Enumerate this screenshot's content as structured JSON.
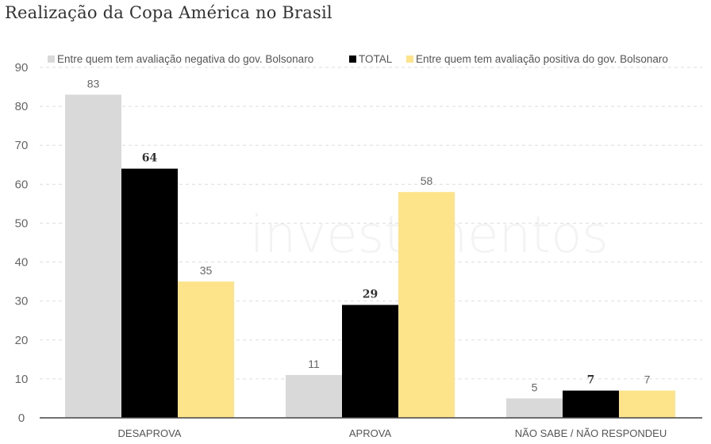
{
  "chart_data": {
    "type": "bar",
    "title": "Realização da Copa América no Brasil",
    "categories": [
      "DESAPROVA",
      "APROVA",
      "NÃO SABE / NÃO RESPONDEU"
    ],
    "series": [
      {
        "name": "Entre quem tem avaliação negativa do gov. Bolsonaro",
        "color": "#d9d9d9",
        "values": [
          83,
          11,
          5
        ]
      },
      {
        "name": "TOTAL",
        "color": "#000000",
        "values": [
          64,
          29,
          7
        ]
      },
      {
        "name": "Entre quem tem avaliação positiva do gov. Bolsonaro",
        "color": "#fde48a",
        "values": [
          35,
          58,
          7
        ]
      }
    ],
    "ylim": [
      0,
      90
    ],
    "yticks": [
      0,
      10,
      20,
      30,
      40,
      50,
      60,
      70,
      80,
      90
    ],
    "grid": true,
    "legend": "top",
    "xlabel": "",
    "ylabel": ""
  },
  "watermark": "investimentos"
}
